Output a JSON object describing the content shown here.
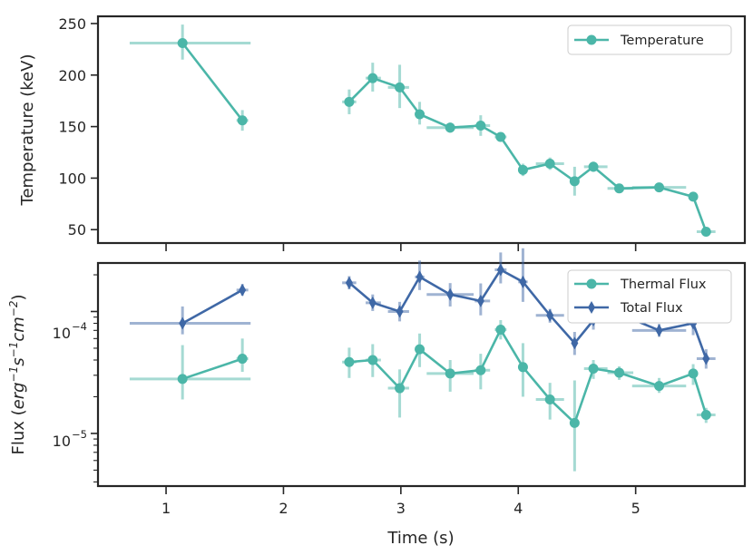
{
  "colors": {
    "thermal": "#4bb6a8",
    "total": "#3f68a6",
    "axis": "#262626"
  },
  "chart_data": [
    {
      "type": "line",
      "panel": "top",
      "ylabel": "Temperature (keV)",
      "yscale": "linear",
      "ylim": [
        37,
        257
      ],
      "yticks": [
        50,
        100,
        150,
        200,
        250
      ],
      "ytick_labels": [
        "50",
        "100",
        "150",
        "200",
        "250"
      ],
      "legend_position": "top-right",
      "series": [
        {
          "name": "Temperature",
          "marker": "circle",
          "color_key": "thermal",
          "segments": [
            [
              {
                "x": 1.14,
                "y": 231,
                "xerr": [
                  0.45,
                  0.58
                ],
                "yerr": [
                  16,
                  18
                ]
              },
              {
                "x": 1.65,
                "y": 156,
                "xerr": [
                  0.05,
                  0.05
                ],
                "yerr": [
                  10,
                  10
                ]
              }
            ],
            [
              {
                "x": 2.56,
                "y": 174,
                "xerr": [
                  0.06,
                  0.06
                ],
                "yerr": [
                  12,
                  12
                ]
              },
              {
                "x": 2.76,
                "y": 197,
                "xerr": [
                  0.06,
                  0.07
                ],
                "yerr": [
                  13,
                  15
                ]
              },
              {
                "x": 2.99,
                "y": 188,
                "xerr": [
                  0.1,
                  0.08
                ],
                "yerr": [
                  20,
                  22
                ]
              },
              {
                "x": 3.16,
                "y": 162,
                "xerr": [
                  0.04,
                  0.04
                ],
                "yerr": [
                  10,
                  12
                ]
              },
              {
                "x": 3.42,
                "y": 149,
                "xerr": [
                  0.2,
                  0.2
                ],
                "yerr": [
                  5,
                  5
                ]
              },
              {
                "x": 3.68,
                "y": 151,
                "xerr": [
                  0.05,
                  0.08
                ],
                "yerr": [
                  10,
                  10
                ]
              },
              {
                "x": 3.85,
                "y": 140,
                "xerr": [
                  0.05,
                  0.05
                ],
                "yerr": [
                  3,
                  3
                ]
              },
              {
                "x": 4.04,
                "y": 108,
                "xerr": [
                  0.04,
                  0.04
                ],
                "yerr": [
                  6,
                  6
                ]
              },
              {
                "x": 4.27,
                "y": 114,
                "xerr": [
                  0.12,
                  0.12
                ],
                "yerr": [
                  6,
                  6
                ]
              },
              {
                "x": 4.48,
                "y": 97,
                "xerr": [
                  0.02,
                  0.02
                ],
                "yerr": [
                  14,
                  14
                ]
              },
              {
                "x": 4.64,
                "y": 111,
                "xerr": [
                  0.08,
                  0.12
                ],
                "yerr": [
                  5,
                  5
                ]
              },
              {
                "x": 4.86,
                "y": 90,
                "xerr": [
                  0.1,
                  0.12
                ],
                "yerr": [
                  3,
                  3
                ]
              },
              {
                "x": 5.2,
                "y": 91,
                "xerr": [
                  0.23,
                  0.23
                ],
                "yerr": [
                  3,
                  3
                ]
              },
              {
                "x": 5.49,
                "y": 82,
                "xerr": [
                  0.03,
                  0.03
                ],
                "yerr": [
                  4,
                  4
                ]
              },
              {
                "x": 5.6,
                "y": 48,
                "xerr": [
                  0.08,
                  0.08
                ],
                "yerr": [
                  3,
                  3
                ]
              }
            ]
          ]
        }
      ]
    },
    {
      "type": "line",
      "panel": "bottom",
      "xlabel": "Time (s)",
      "ylabel": "Flux (erg⁻¹s⁻¹cm⁻²)",
      "ylabel_parts": [
        "Flux (",
        "erg",
        "−1",
        "s",
        "−1",
        "cm",
        "−2",
        ")"
      ],
      "yscale": "log",
      "ylim": [
        3.7e-06,
        0.00025
      ],
      "ytick_labels": [
        {
          "value": 1e-05,
          "base": "10",
          "exponent": "−5"
        },
        {
          "value": 0.0001,
          "base": "10",
          "exponent": "−4"
        }
      ],
      "xlim": [
        0.42,
        5.93
      ],
      "xticks": [
        1,
        2,
        3,
        4,
        5
      ],
      "xtick_labels": [
        "1",
        "2",
        "3",
        "4",
        "5"
      ],
      "legend_position": "top-right",
      "series": [
        {
          "name": "Thermal Flux",
          "marker": "circle",
          "color_key": "thermal",
          "segments": [
            [
              {
                "x": 1.14,
                "y": 2.8e-05,
                "xerr": [
                  0.45,
                  0.58
                ],
                "yerr": [
                  9e-06,
                  2.5e-05
                ]
              },
              {
                "x": 1.65,
                "y": 4.1e-05,
                "xerr": [
                  0.05,
                  0.05
                ],
                "yerr": [
                  9e-06,
                  1.9e-05
                ]
              }
            ],
            [
              {
                "x": 2.56,
                "y": 3.85e-05,
                "xerr": [
                  0.06,
                  0.06
                ],
                "yerr": [
                  1e-05,
                  1.2e-05
                ]
              },
              {
                "x": 2.76,
                "y": 4e-05,
                "xerr": [
                  0.06,
                  0.07
                ],
                "yerr": [
                  1.1e-05,
                  1.4e-05
                ]
              },
              {
                "x": 2.99,
                "y": 2.35e-05,
                "xerr": [
                  0.1,
                  0.08
                ],
                "yerr": [
                  1e-05,
                  1e-05
                ]
              },
              {
                "x": 3.16,
                "y": 4.9e-05,
                "xerr": [
                  0.04,
                  0.04
                ],
                "yerr": [
                  1.4e-05,
                  1.7e-05
                ]
              },
              {
                "x": 3.42,
                "y": 3.1e-05,
                "xerr": [
                  0.2,
                  0.2
                ],
                "yerr": [
                  9e-06,
                  9e-06
                ]
              },
              {
                "x": 3.68,
                "y": 3.3e-05,
                "xerr": [
                  0.05,
                  0.08
                ],
                "yerr": [
                  1e-05,
                  1.2e-05
                ]
              },
              {
                "x": 3.85,
                "y": 7.1e-05,
                "xerr": [
                  0.05,
                  0.05
                ],
                "yerr": [
                  1.2e-05,
                  1.4e-05
                ]
              },
              {
                "x": 4.04,
                "y": 3.5e-05,
                "xerr": [
                  0.04,
                  0.04
                ],
                "yerr": [
                  1.5e-05,
                  2e-05
                ]
              },
              {
                "x": 4.27,
                "y": 1.9e-05,
                "xerr": [
                  0.12,
                  0.12
                ],
                "yerr": [
                  6e-06,
                  7e-06
                ]
              },
              {
                "x": 4.48,
                "y": 1.22e-05,
                "xerr": [
                  0.02,
                  0.02
                ],
                "yerr": [
                  7.3e-06,
                  1.5e-05
                ]
              },
              {
                "x": 4.64,
                "y": 3.4e-05,
                "xerr": [
                  0.08,
                  0.12
                ],
                "yerr": [
                  6e-06,
                  6e-06
                ]
              },
              {
                "x": 4.86,
                "y": 3.15e-05,
                "xerr": [
                  0.1,
                  0.12
                ],
                "yerr": [
                  4e-06,
                  4e-06
                ]
              },
              {
                "x": 5.2,
                "y": 2.45e-05,
                "xerr": [
                  0.23,
                  0.23
                ],
                "yerr": [
                  3e-06,
                  4e-06
                ]
              },
              {
                "x": 5.49,
                "y": 3.1e-05,
                "xerr": [
                  0.03,
                  0.03
                ],
                "yerr": [
                  6e-06,
                  6e-06
                ]
              },
              {
                "x": 5.6,
                "y": 1.42e-05,
                "xerr": [
                  0.08,
                  0.08
                ],
                "yerr": [
                  2e-06,
                  2e-06
                ]
              }
            ]
          ]
        },
        {
          "name": "Total Flux",
          "marker": "diamond",
          "color_key": "total",
          "segments": [
            [
              {
                "x": 1.14,
                "y": 8e-05,
                "xerr": [
                  0.45,
                  0.58
                ],
                "yerr": [
                  1.5e-05,
                  3e-05
                ]
              },
              {
                "x": 1.65,
                "y": 0.00015,
                "xerr": [
                  0.05,
                  0.05
                ],
                "yerr": [
                  1.5e-05,
                  1.8e-05
                ]
              }
            ],
            [
              {
                "x": 2.56,
                "y": 0.000172,
                "xerr": [
                  0.06,
                  0.06
                ],
                "yerr": [
                  2e-05,
                  2.3e-05
                ]
              },
              {
                "x": 2.76,
                "y": 0.000118,
                "xerr": [
                  0.06,
                  0.07
                ],
                "yerr": [
                  1.7e-05,
                  2e-05
                ]
              },
              {
                "x": 2.99,
                "y": 0.0001,
                "xerr": [
                  0.1,
                  0.08
                ],
                "yerr": [
                  1.7e-05,
                  2e-05
                ]
              },
              {
                "x": 3.16,
                "y": 0.000192,
                "xerr": [
                  0.04,
                  0.04
                ],
                "yerr": [
                  4.2e-05,
                  7e-05
                ]
              },
              {
                "x": 3.42,
                "y": 0.000138,
                "xerr": [
                  0.2,
                  0.2
                ],
                "yerr": [
                  2.8e-05,
                  3.3e-05
                ]
              },
              {
                "x": 3.68,
                "y": 0.000122,
                "xerr": [
                  0.05,
                  0.08
                ],
                "yerr": [
                  2.9e-05,
                  4.8e-05
                ]
              },
              {
                "x": 3.85,
                "y": 0.00022,
                "xerr": [
                  0.05,
                  0.05
                ],
                "yerr": [
                  5e-05,
                  8.5e-05
                ]
              },
              {
                "x": 4.04,
                "y": 0.000175,
                "xerr": [
                  0.04,
                  0.04
                ],
                "yerr": [
                  5.5e-05,
                  0.000155
                ]
              },
              {
                "x": 4.27,
                "y": 9.3e-05,
                "xerr": [
                  0.12,
                  0.12
                ],
                "yerr": [
                  1.2e-05,
                  1.2e-05
                ]
              },
              {
                "x": 4.48,
                "y": 5.5e-05,
                "xerr": [
                  0.02,
                  0.02
                ],
                "yerr": [
                  1.1e-05,
                  1.3e-05
                ]
              },
              {
                "x": 4.64,
                "y": 8.5e-05,
                "xerr": [
                  0.08,
                  0.12
                ],
                "yerr": [
                  1.4e-05,
                  2.2e-05
                ]
              },
              {
                "x": 4.86,
                "y": 9.6e-05,
                "xerr": [
                  0.1,
                  0.12
                ],
                "yerr": [
                  1.4e-05,
                  2.4e-05
                ]
              },
              {
                "x": 5.2,
                "y": 7e-05,
                "xerr": [
                  0.23,
                  0.23
                ],
                "yerr": [
                  8e-06,
                  9e-06
                ]
              },
              {
                "x": 5.49,
                "y": 8e-05,
                "xerr": [
                  0.03,
                  0.03
                ],
                "yerr": [
                  1.6e-05,
                  2.8e-05
                ]
              },
              {
                "x": 5.6,
                "y": 4.1e-05,
                "xerr": [
                  0.08,
                  0.08
                ],
                "yerr": [
                  7e-06,
                  8e-06
                ]
              }
            ]
          ]
        }
      ]
    }
  ]
}
